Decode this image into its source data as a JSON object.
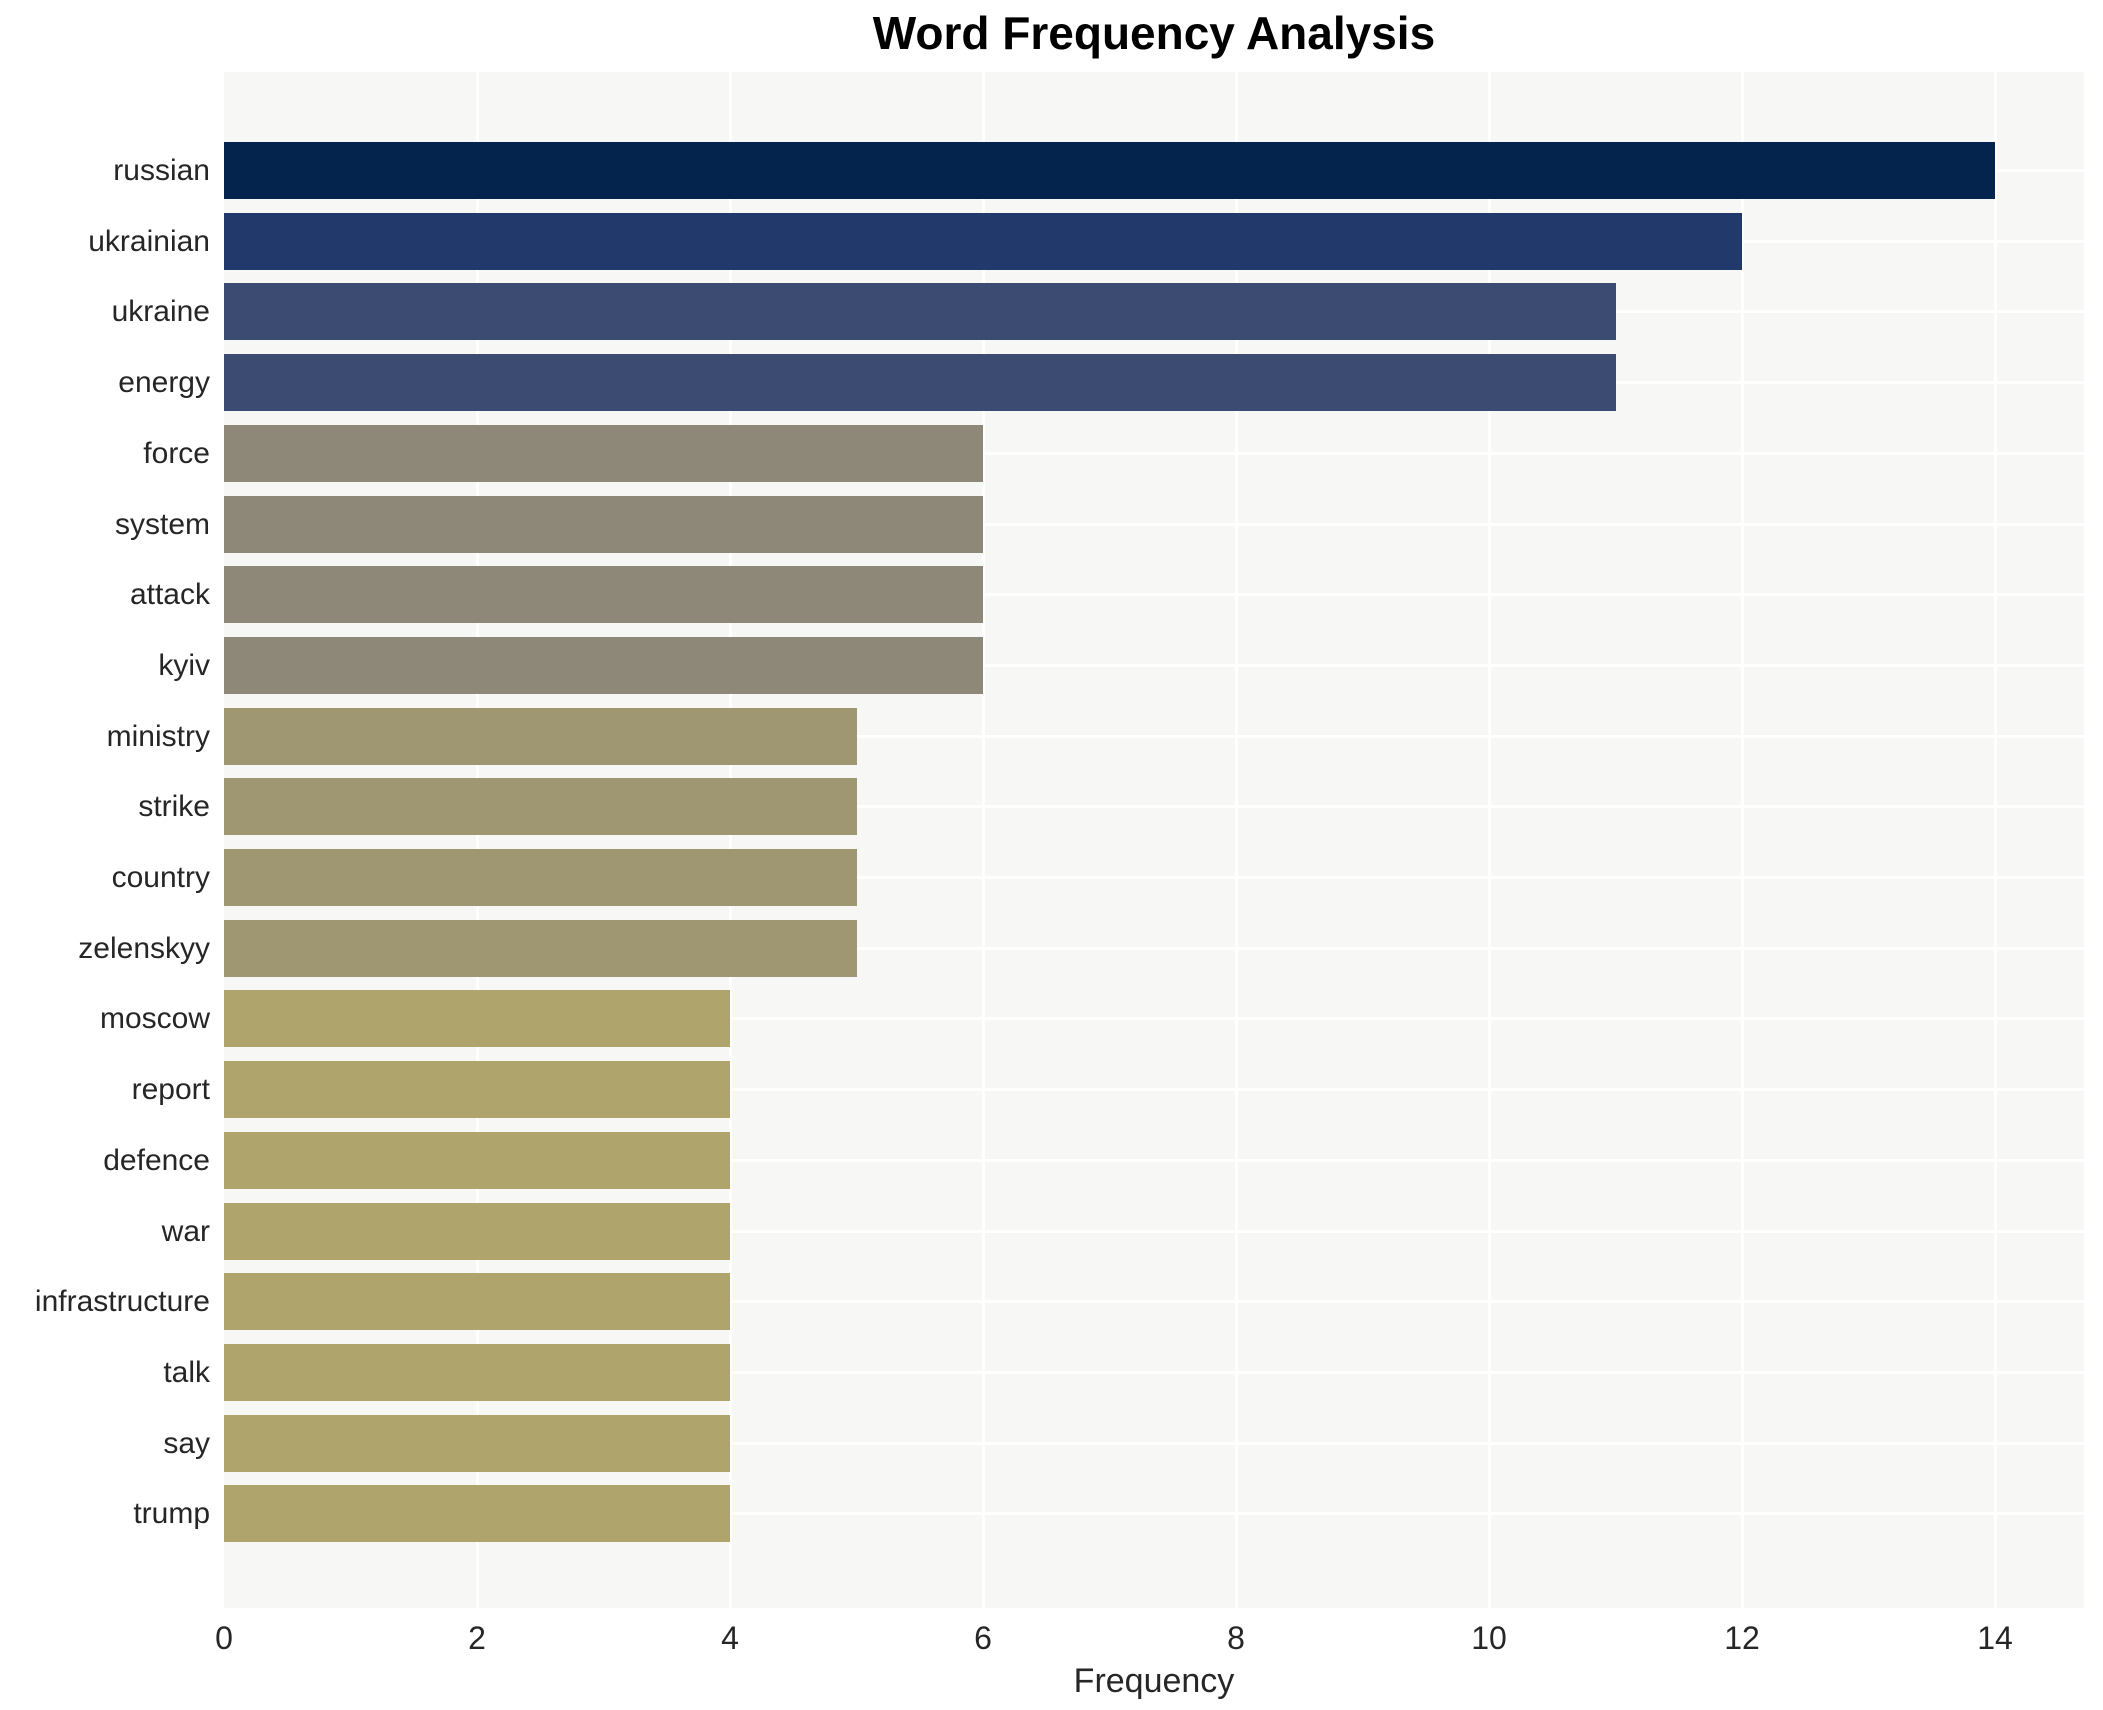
{
  "chart_data": {
    "type": "bar",
    "orientation": "horizontal",
    "title": "Word Frequency Analysis",
    "xlabel": "Frequency",
    "ylabel": "",
    "categories": [
      "russian",
      "ukrainian",
      "ukraine",
      "energy",
      "force",
      "system",
      "attack",
      "kyiv",
      "ministry",
      "strike",
      "country",
      "zelenskyy",
      "moscow",
      "report",
      "defence",
      "war",
      "infrastructure",
      "talk",
      "say",
      "trump"
    ],
    "values": [
      14,
      12,
      11,
      11,
      6,
      6,
      6,
      6,
      5,
      5,
      5,
      5,
      4,
      4,
      4,
      4,
      4,
      4,
      4,
      4
    ],
    "bar_colors": [
      "#04234d",
      "#21396b",
      "#3c4b72",
      "#3c4b72",
      "#8e8879",
      "#8e8879",
      "#8e8879",
      "#8e8879",
      "#9f9772",
      "#9f9772",
      "#9f9772",
      "#9f9772",
      "#aea46c",
      "#aea46c",
      "#aea46c",
      "#aea46c",
      "#aea46c",
      "#aea46c",
      "#aea46c",
      "#aea46c"
    ],
    "xticks": [
      0,
      2,
      4,
      6,
      8,
      10,
      12,
      14
    ],
    "xlim": [
      0,
      14.7
    ],
    "grid": "white gridlines on light panel",
    "panel_bg": "#f7f7f6",
    "grid_color": "#ffffff",
    "legend": "none"
  }
}
